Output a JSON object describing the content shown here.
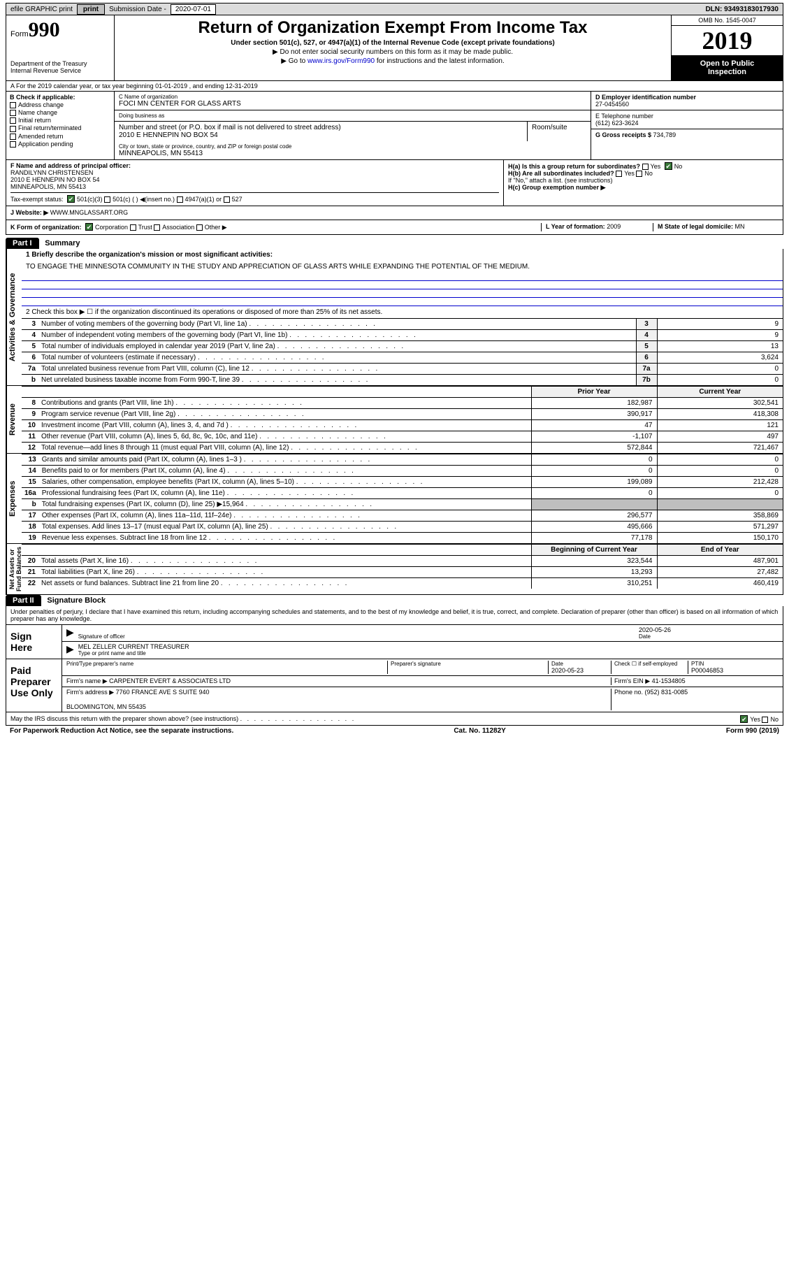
{
  "topbar": {
    "efile": "efile GRAPHIC print",
    "subdate_lbl": "Submission Date - ",
    "subdate": "2020-07-01",
    "dln_lbl": "DLN: ",
    "dln": "93493183017930"
  },
  "header": {
    "form": "Form",
    "formnum": "990",
    "dept": "Department of the Treasury\nInternal Revenue Service",
    "title": "Return of Organization Exempt From Income Tax",
    "sub": "Under section 501(c), 527, or 4947(a)(1) of the Internal Revenue Code (except private foundations)",
    "note1": "▶ Do not enter social security numbers on this form as it may be made public.",
    "note2_pre": "▶ Go to ",
    "note2_link": "www.irs.gov/Form990",
    "note2_post": " for instructions and the latest information.",
    "omb": "OMB No. 1545-0047",
    "year": "2019",
    "openpub": "Open to Public\nInspection"
  },
  "rowa": "A  For the 2019 calendar year, or tax year beginning 01-01-2019   , and ending 12-31-2019",
  "colB": {
    "hd": "B Check if applicable:",
    "opts": [
      "Address change",
      "Name change",
      "Initial return",
      "Final return/terminated",
      "Amended return",
      "Application pending"
    ]
  },
  "colC": {
    "nameorg_lbl": "C Name of organization",
    "nameorg": "FOCI MN CENTER FOR GLASS ARTS",
    "dba_lbl": "Doing business as",
    "dba": "",
    "addr_lbl": "Number and street (or P.O. box if mail is not delivered to street address)",
    "room_lbl": "Room/suite",
    "addr": "2010 E HENNEPIN NO BOX 54",
    "city_lbl": "City or town, state or province, country, and ZIP or foreign postal code",
    "city": "MINNEAPOLIS, MN  55413"
  },
  "colD": {
    "ein_lbl": "D Employer identification number",
    "ein": "27-0454560",
    "tel_lbl": "E Telephone number",
    "tel": "(612) 623-3624",
    "gross_lbl": "G Gross receipts $ ",
    "gross": "734,789"
  },
  "rowF": {
    "f_lbl": "F  Name and address of principal officer:",
    "f_val": "RANDILYNN CHRISTENSEN\n2010 E HENNEPIN NO BOX 54\nMINNEAPOLIS, MN  55413",
    "tax_lbl": "Tax-exempt status:",
    "tax_501c3": "501(c)(3)",
    "tax_501c": "501(c) (  ) ◀(insert no.)",
    "tax_4947": "4947(a)(1) or",
    "tax_527": "527",
    "h_a": "H(a)  Is this a group return for subordinates?",
    "h_b": "H(b)  Are all subordinates included?",
    "h_note": "If \"No,\" attach a list. (see instructions)",
    "h_c": "H(c)  Group exemption number ▶"
  },
  "rowJ": {
    "j_lbl": "J  Website: ▶ ",
    "j_val": "WWW.MNGLASSART.ORG"
  },
  "rowK": {
    "k_lbl": "K Form of organization:",
    "k_opts": [
      "Corporation",
      "Trust",
      "Association",
      "Other ▶"
    ],
    "l_lbl": "L Year of formation: ",
    "l_val": "2009",
    "m_lbl": "M State of legal domicile: ",
    "m_val": "MN"
  },
  "part1": {
    "hdr": "Part I",
    "title": "Summary",
    "q1": "1  Briefly describe the organization's mission or most significant activities:",
    "q1val": "TO ENGAGE THE MINNESOTA COMMUNITY IN THE STUDY AND APPRECIATION OF GLASS ARTS WHILE EXPANDING THE POTENTIAL OF THE MEDIUM.",
    "q2": "2   Check this box ▶ ☐  if the organization discontinued its operations or disposed of more than 25% of its net assets."
  },
  "sidelabels": {
    "act": "Activities & Governance",
    "rev": "Revenue",
    "exp": "Expenses",
    "net": "Net Assets or\nFund Balances"
  },
  "actgov": {
    "rows": [
      {
        "n": "3",
        "t": "Number of voting members of the governing body (Part VI, line 1a)",
        "box": "3",
        "v": "9"
      },
      {
        "n": "4",
        "t": "Number of independent voting members of the governing body (Part VI, line 1b)",
        "box": "4",
        "v": "9"
      },
      {
        "n": "5",
        "t": "Total number of individuals employed in calendar year 2019 (Part V, line 2a)",
        "box": "5",
        "v": "13"
      },
      {
        "n": "6",
        "t": "Total number of volunteers (estimate if necessary)",
        "box": "6",
        "v": "3,624"
      },
      {
        "n": "7a",
        "t": "Total unrelated business revenue from Part VIII, column (C), line 12",
        "box": "7a",
        "v": "0"
      },
      {
        "n": "b",
        "t": "Net unrelated business taxable income from Form 990-T, line 39",
        "box": "7b",
        "v": "0"
      }
    ]
  },
  "revhdr": {
    "py": "Prior Year",
    "cy": "Current Year"
  },
  "revenue": {
    "rows": [
      {
        "n": "8",
        "t": "Contributions and grants (Part VIII, line 1h)",
        "py": "182,987",
        "cy": "302,541"
      },
      {
        "n": "9",
        "t": "Program service revenue (Part VIII, line 2g)",
        "py": "390,917",
        "cy": "418,308"
      },
      {
        "n": "10",
        "t": "Investment income (Part VIII, column (A), lines 3, 4, and 7d )",
        "py": "47",
        "cy": "121"
      },
      {
        "n": "11",
        "t": "Other revenue (Part VIII, column (A), lines 5, 6d, 8c, 9c, 10c, and 11e)",
        "py": "-1,107",
        "cy": "497"
      },
      {
        "n": "12",
        "t": "Total revenue—add lines 8 through 11 (must equal Part VIII, column (A), line 12)",
        "py": "572,844",
        "cy": "721,467"
      }
    ]
  },
  "expenses": {
    "rows": [
      {
        "n": "13",
        "t": "Grants and similar amounts paid (Part IX, column (A), lines 1–3 )",
        "py": "0",
        "cy": "0"
      },
      {
        "n": "14",
        "t": "Benefits paid to or for members (Part IX, column (A), line 4)",
        "py": "0",
        "cy": "0"
      },
      {
        "n": "15",
        "t": "Salaries, other compensation, employee benefits (Part IX, column (A), lines 5–10)",
        "py": "199,089",
        "cy": "212,428"
      },
      {
        "n": "16a",
        "t": "Professional fundraising fees (Part IX, column (A), line 11e)",
        "py": "0",
        "cy": "0"
      },
      {
        "n": "b",
        "t": "Total fundraising expenses (Part IX, column (D), line 25) ▶15,964",
        "py": "",
        "cy": "",
        "shade": true
      },
      {
        "n": "17",
        "t": "Other expenses (Part IX, column (A), lines 11a–11d, 11f–24e)",
        "py": "296,577",
        "cy": "358,869"
      },
      {
        "n": "18",
        "t": "Total expenses. Add lines 13–17 (must equal Part IX, column (A), line 25)",
        "py": "495,666",
        "cy": "571,297"
      },
      {
        "n": "19",
        "t": "Revenue less expenses. Subtract line 18 from line 12",
        "py": "77,178",
        "cy": "150,170"
      }
    ]
  },
  "nethdr": {
    "py": "Beginning of Current Year",
    "cy": "End of Year"
  },
  "netassets": {
    "rows": [
      {
        "n": "20",
        "t": "Total assets (Part X, line 16)",
        "py": "323,544",
        "cy": "487,901"
      },
      {
        "n": "21",
        "t": "Total liabilities (Part X, line 26)",
        "py": "13,293",
        "cy": "27,482"
      },
      {
        "n": "22",
        "t": "Net assets or fund balances. Subtract line 21 from line 20",
        "py": "310,251",
        "cy": "460,419"
      }
    ]
  },
  "part2": {
    "hdr": "Part II",
    "title": "Signature Block",
    "decl": "Under penalties of perjury, I declare that I have examined this return, including accompanying schedules and statements, and to the best of my knowledge and belief, it is true, correct, and complete. Declaration of preparer (other than officer) is based on all information of which preparer has any knowledge."
  },
  "sign": {
    "here": "Sign\nHere",
    "sig_lbl": "Signature of officer",
    "date_lbl": "Date",
    "date": "2020-05-26",
    "name": "MEL ZELLER  CURRENT TREASURER",
    "name_lbl": "Type or print name and title"
  },
  "paid": {
    "hdr": "Paid\nPreparer\nUse Only",
    "prep_lbl": "Print/Type preparer's name",
    "sig_lbl": "Preparer's signature",
    "date_lbl": "Date",
    "date": "2020-05-23",
    "check_lbl": "Check ☐ if self-employed",
    "ptin_lbl": "PTIN",
    "ptin": "P00046853",
    "firm_lbl": "Firm's name     ▶ ",
    "firm": "CARPENTER EVERT & ASSOCIATES LTD",
    "ein_lbl": "Firm's EIN ▶ ",
    "ein": "41-1534805",
    "addr_lbl": "Firm's address ▶ ",
    "addr": "7760 FRANCE AVE S SUITE 940\n\nBLOOMINGTON, MN  55435",
    "phone_lbl": "Phone no. ",
    "phone": "(952) 831-0085"
  },
  "discuss": "May the IRS discuss this return with the preparer shown above? (see instructions)",
  "footer": {
    "left": "For Paperwork Reduction Act Notice, see the separate instructions.",
    "mid": "Cat. No. 11282Y",
    "right": "Form 990 (2019)"
  }
}
